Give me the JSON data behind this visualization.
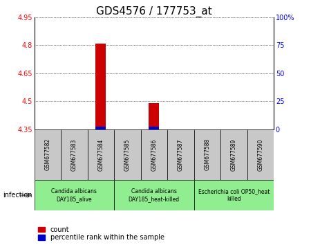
{
  "title": "GDS4576 / 177753_at",
  "samples": [
    "GSM677582",
    "GSM677583",
    "GSM677584",
    "GSM677585",
    "GSM677586",
    "GSM677587",
    "GSM677588",
    "GSM677589",
    "GSM677590"
  ],
  "count_values": [
    4.35,
    4.35,
    4.81,
    4.35,
    4.49,
    4.35,
    4.35,
    4.35,
    4.35
  ],
  "percentile_values": [
    4.35,
    4.35,
    4.365,
    4.35,
    4.365,
    4.35,
    4.35,
    4.35,
    4.35
  ],
  "base_value": 4.35,
  "ylim": [
    4.35,
    4.95
  ],
  "yticks_left": [
    4.35,
    4.5,
    4.65,
    4.8,
    4.95
  ],
  "yticks_right": [
    0,
    25,
    50,
    75,
    100
  ],
  "count_color": "#cc0000",
  "percentile_color": "#0000cc",
  "bar_bg_color": "#c8c8c8",
  "group_bg_color": "#90ee90",
  "groups": [
    {
      "label": "Candida albicans\nDAY185_alive",
      "start": 0,
      "end": 3
    },
    {
      "label": "Candida albicans\nDAY185_heat-killed",
      "start": 3,
      "end": 6
    },
    {
      "label": "Escherichia coli OP50_heat\nkilled",
      "start": 6,
      "end": 9
    }
  ],
  "infection_label": "infection",
  "legend_count_label": "count",
  "legend_percentile_label": "percentile rank within the sample",
  "title_fontsize": 11,
  "tick_fontsize": 7,
  "sample_fontsize": 5.5,
  "group_fontsize": 5.5,
  "legend_fontsize": 7,
  "bar_width": 0.4
}
